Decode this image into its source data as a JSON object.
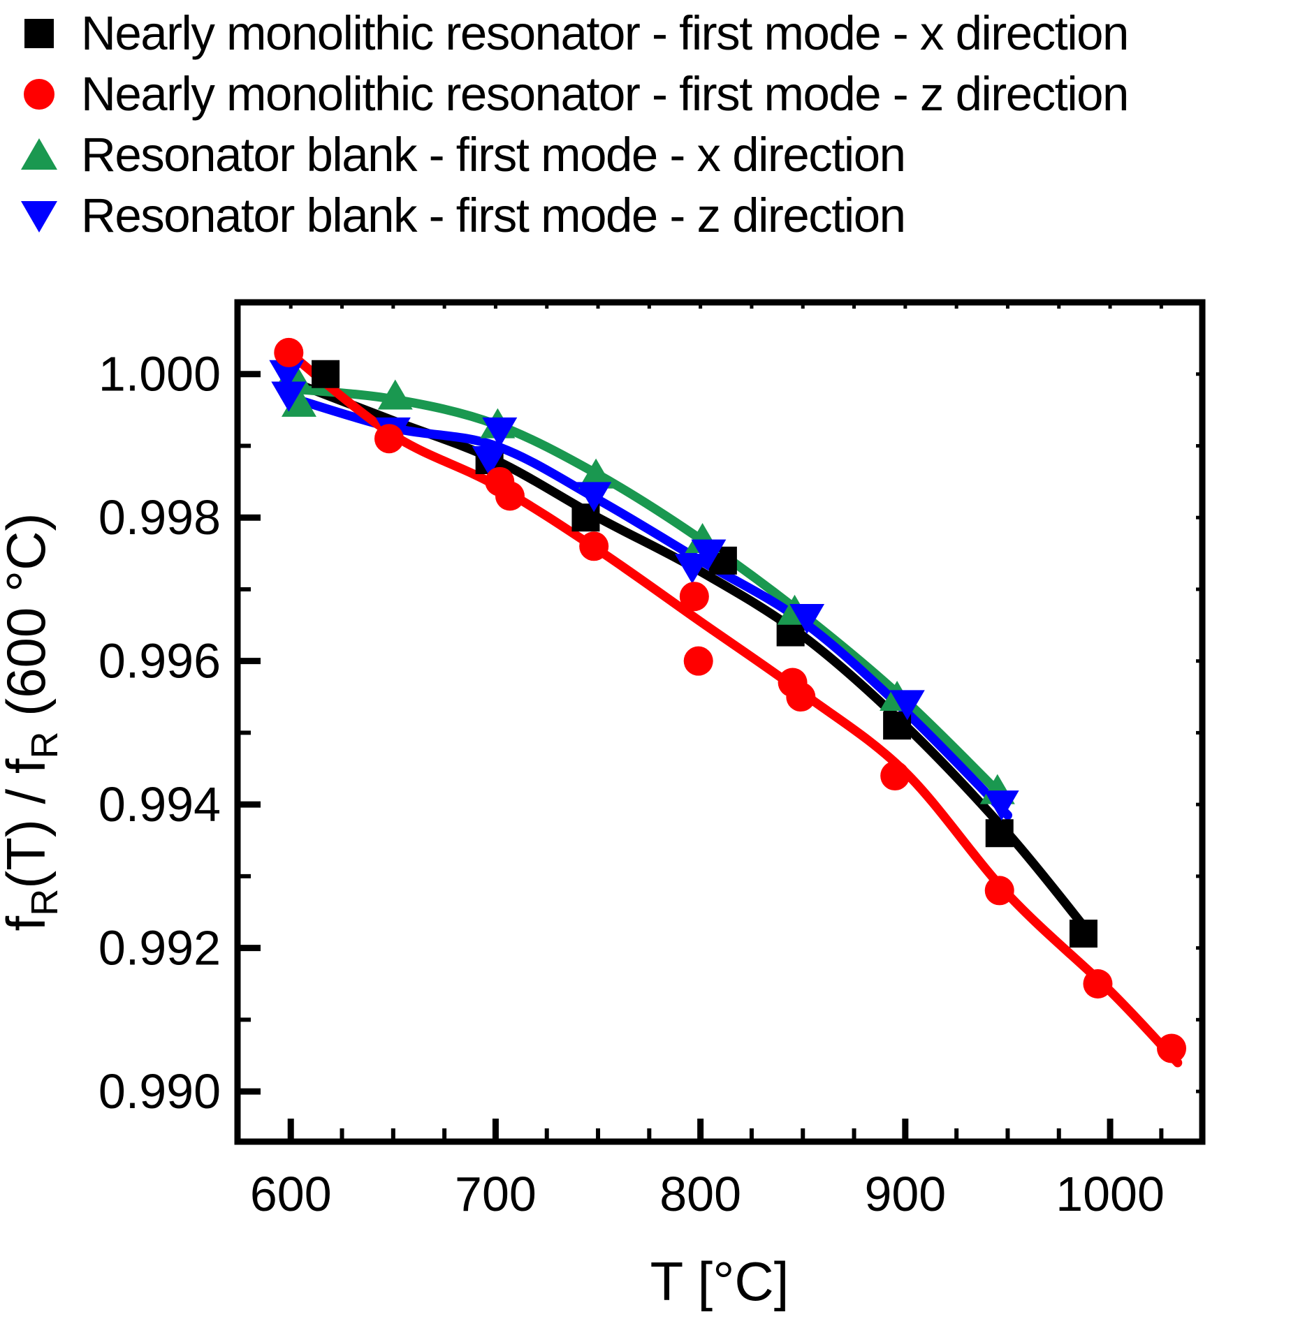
{
  "legend": {
    "items": [
      {
        "marker": "square",
        "color": "#000000",
        "label": "Nearly monolithic resonator - first mode -  x direction"
      },
      {
        "marker": "circle",
        "color": "#ff0000",
        "label": "Nearly monolithic resonator - first mode -  z direction"
      },
      {
        "marker": "triangle-up",
        "color": "#1a9850",
        "label": "Resonator blank - first mode -  x direction"
      },
      {
        "marker": "triangle-down",
        "color": "#0000ff",
        "label": "Resonator blank - first mode -  z direction"
      }
    ]
  },
  "chart_data": {
    "type": "scatter",
    "title": "",
    "xlabel": "T [°C]",
    "ylabel_parts": [
      {
        "text": "f"
      },
      {
        "text": "R",
        "sub": true
      },
      {
        "text": "(T) / f"
      },
      {
        "text": "R",
        "sub": true
      },
      {
        "text": " (600 °C)"
      }
    ],
    "xlim": [
      574,
      1045
    ],
    "ylim": [
      0.9893,
      1.001
    ],
    "x_major_ticks": [
      {
        "value": 600,
        "label": "600"
      },
      {
        "value": 700,
        "label": "700"
      },
      {
        "value": 800,
        "label": "800"
      },
      {
        "value": 900,
        "label": "900"
      },
      {
        "value": 1000,
        "label": "1000"
      }
    ],
    "x_minor_ticks": [
      625,
      650,
      675,
      725,
      750,
      775,
      825,
      850,
      875,
      925,
      950,
      975,
      1025
    ],
    "y_major_ticks": [
      {
        "value": 1.0,
        "label": "1.000"
      },
      {
        "value": 0.998,
        "label": "0.998"
      },
      {
        "value": 0.996,
        "label": "0.996"
      },
      {
        "value": 0.994,
        "label": "0.994"
      },
      {
        "value": 0.992,
        "label": "0.992"
      },
      {
        "value": 0.99,
        "label": "0.990"
      }
    ],
    "y_minor_ticks": [
      0.991,
      0.993,
      0.995,
      0.997,
      0.999
    ],
    "grid": false,
    "legend_position": "top-left-outside",
    "series": [
      {
        "name": "Nearly monolithic resonator - first mode - x direction",
        "color": "#000000",
        "marker": "square",
        "points": [
          [
            617,
            1.0
          ],
          [
            697,
            0.9988
          ],
          [
            744,
            0.998
          ],
          [
            811,
            0.9974
          ],
          [
            844,
            0.9964
          ],
          [
            896,
            0.9951
          ],
          [
            946,
            0.9936
          ],
          [
            987,
            0.9922
          ]
        ],
        "fit": [
          [
            600,
            0.9999
          ],
          [
            650,
            0.99935
          ],
          [
            700,
            0.9988
          ],
          [
            750,
            0.998
          ],
          [
            800,
            0.99725
          ],
          [
            850,
            0.99635
          ],
          [
            900,
            0.9951
          ],
          [
            950,
            0.9936
          ],
          [
            990,
            0.9922
          ]
        ]
      },
      {
        "name": "Nearly monolithic resonator - first mode - z direction",
        "color": "#ff0000",
        "marker": "circle",
        "points": [
          [
            599,
            1.0003
          ],
          [
            648,
            0.9991
          ],
          [
            702,
            0.9985
          ],
          [
            707,
            0.9983
          ],
          [
            748,
            0.9976
          ],
          [
            797,
            0.9969
          ],
          [
            799,
            0.996
          ],
          [
            845,
            0.9957
          ],
          [
            849,
            0.9955
          ],
          [
            895,
            0.9944
          ],
          [
            946,
            0.9928
          ],
          [
            994,
            0.9915
          ],
          [
            1030,
            0.9906
          ]
        ],
        "fit": [
          [
            599,
            1.0003
          ],
          [
            650,
            0.99915
          ],
          [
            700,
            0.99845
          ],
          [
            750,
            0.99755
          ],
          [
            800,
            0.99655
          ],
          [
            850,
            0.99555
          ],
          [
            900,
            0.99445
          ],
          [
            950,
            0.99275
          ],
          [
            1000,
            0.9914
          ],
          [
            1033,
            0.9904
          ]
        ]
      },
      {
        "name": "Resonator blank - first mode - x direction",
        "color": "#1a9850",
        "marker": "triangle-up",
        "points": [
          [
            601,
            1.0
          ],
          [
            604,
            0.9996
          ],
          [
            651,
            0.9997
          ],
          [
            701,
            0.9993
          ],
          [
            749,
            0.9986
          ],
          [
            801,
            0.9977
          ],
          [
            846,
            0.9967
          ],
          [
            896,
            0.9955
          ],
          [
            945,
            0.9942
          ]
        ],
        "fit": [
          [
            598,
            0.9998
          ],
          [
            650,
            0.99965
          ],
          [
            700,
            0.9993
          ],
          [
            750,
            0.9986
          ],
          [
            800,
            0.9977
          ],
          [
            850,
            0.99665
          ],
          [
            900,
            0.99545
          ],
          [
            948,
            0.9941
          ]
        ]
      },
      {
        "name": "Resonator blank - first mode - z direction",
        "color": "#0000ff",
        "marker": "triangle-down",
        "points": [
          [
            598,
            1.0
          ],
          [
            599,
            0.9997
          ],
          [
            650,
            0.9992
          ],
          [
            697,
            0.9988
          ],
          [
            702,
            0.9992
          ],
          [
            748,
            0.9983
          ],
          [
            796,
            0.9973
          ],
          [
            804,
            0.9975
          ],
          [
            852,
            0.9966
          ],
          [
            901,
            0.9954
          ],
          [
            947,
            0.994
          ]
        ],
        "fit": [
          [
            597,
            0.9997
          ],
          [
            650,
            0.99925
          ],
          [
            700,
            0.999
          ],
          [
            750,
            0.99825
          ],
          [
            800,
            0.9974
          ],
          [
            850,
            0.99655
          ],
          [
            900,
            0.9953
          ],
          [
            950,
            0.99385
          ]
        ]
      }
    ]
  }
}
